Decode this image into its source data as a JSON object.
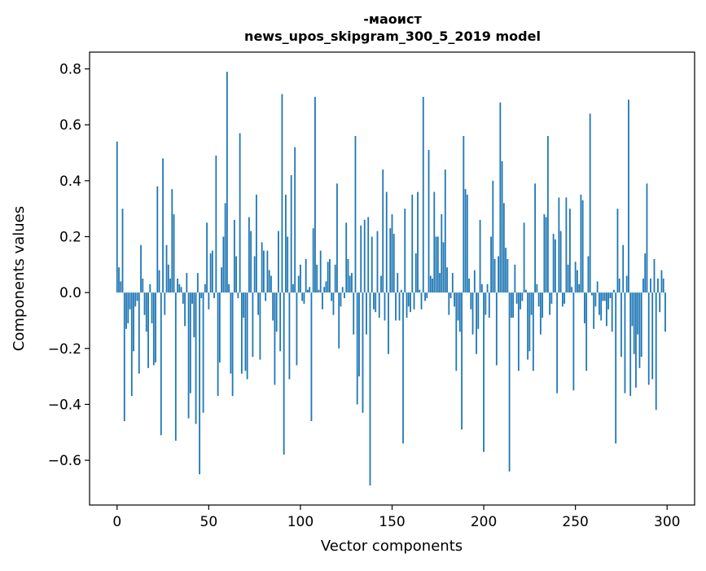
{
  "chart_data": {
    "type": "bar",
    "title_line1": "-маоист",
    "title_line2": "news_upos_skipgram_300_5_2019 model",
    "xlabel": "Vector components",
    "ylabel": "Components values",
    "xlim": [
      -15,
      315
    ],
    "ylim": [
      -0.76,
      0.86
    ],
    "xticks": [
      0,
      50,
      100,
      150,
      200,
      250,
      300
    ],
    "yticks": [
      -0.6,
      -0.4,
      -0.2,
      0.0,
      0.2,
      0.4,
      0.6,
      0.8
    ],
    "ytick_labels": [
      "−0.6",
      "−0.4",
      "−0.2",
      "0.0",
      "0.2",
      "0.4",
      "0.6",
      "0.8"
    ],
    "xtick_labels": [
      "0",
      "50",
      "100",
      "150",
      "200",
      "250",
      "300"
    ],
    "bar_color": "#1f77b4",
    "values": [
      0.54,
      0.09,
      0.04,
      0.3,
      -0.46,
      -0.13,
      -0.11,
      -0.06,
      -0.37,
      -0.21,
      -0.05,
      -0.03,
      -0.29,
      0.17,
      0.05,
      -0.08,
      -0.14,
      -0.27,
      0.03,
      -0.11,
      -0.26,
      -0.25,
      0.38,
      0.08,
      -0.51,
      0.48,
      -0.08,
      0.17,
      0.1,
      0.05,
      0.37,
      0.28,
      -0.53,
      0.05,
      0.03,
      0.02,
      -0.04,
      -0.12,
      0.07,
      -0.45,
      -0.36,
      -0.04,
      -0.16,
      -0.47,
      0.07,
      -0.65,
      -0.02,
      -0.43,
      0.03,
      0.25,
      -0.06,
      0.14,
      0.15,
      -0.02,
      0.49,
      -0.37,
      -0.25,
      0.09,
      0.2,
      0.32,
      0.79,
      0.03,
      -0.29,
      -0.37,
      0.26,
      0.13,
      -0.02,
      0.57,
      -0.29,
      -0.09,
      -0.28,
      -0.31,
      0.27,
      0.22,
      -0.23,
      0.13,
      0.35,
      -0.08,
      -0.24,
      0.18,
      0.15,
      -0.03,
      0.15,
      0.08,
      0.06,
      -0.1,
      -0.33,
      -0.14,
      0.22,
      -0.21,
      0.71,
      -0.58,
      0.35,
      0.2,
      -0.31,
      0.42,
      0.03,
      0.52,
      -0.26,
      0.06,
      0.1,
      -0.03,
      -0.04,
      0.12,
      0.01,
      0.02,
      -0.46,
      0.23,
      0.7,
      0.1,
      0.01,
      0.15,
      -0.06,
      0.02,
      0.04,
      0.11,
      0.12,
      -0.03,
      -0.08,
      0.1,
      0.39,
      -0.2,
      -0.05,
      0.02,
      -0.02,
      0.25,
      0.12,
      0.06,
      0.07,
      -0.15,
      0.56,
      -0.4,
      -0.3,
      0.24,
      -0.43,
      0.26,
      -0.15,
      0.27,
      -0.69,
      0.2,
      -0.06,
      -0.07,
      0.22,
      -0.09,
      0.06,
      0.44,
      -0.1,
      0.36,
      -0.22,
      0.23,
      0.28,
      0.21,
      -0.1,
      0.07,
      -0.1,
      0.01,
      -0.54,
      0.3,
      -0.09,
      -0.05,
      -0.07,
      0.35,
      -0.06,
      0.14,
      0.36,
      0.01,
      -0.06,
      0.7,
      -0.03,
      -0.02,
      0.51,
      0.06,
      0.05,
      0.36,
      0.2,
      0.2,
      0.07,
      0.28,
      0.18,
      0.44,
      0.09,
      -0.08,
      -0.02,
      0.07,
      -0.05,
      -0.28,
      -0.1,
      -0.14,
      -0.49,
      0.56,
      0.37,
      0.35,
      0.05,
      -0.06,
      -0.15,
      0.08,
      -0.22,
      -0.13,
      0.26,
      0.03,
      -0.57,
      -0.08,
      0.03,
      -0.09,
      0.2,
      0.4,
      0.12,
      -0.26,
      0.13,
      0.68,
      0.47,
      0.32,
      0.16,
      0.12,
      -0.64,
      -0.09,
      -0.09,
      0.1,
      -0.04,
      -0.28,
      -0.06,
      -0.03,
      0.25,
      0.01,
      -0.24,
      -0.21,
      -0.08,
      -0.28,
      0.39,
      0.03,
      -0.05,
      -0.15,
      -0.09,
      0.28,
      0.27,
      0.56,
      -0.08,
      -0.04,
      0.21,
      0.19,
      -0.36,
      0.34,
      0.22,
      -0.05,
      -0.04,
      0.34,
      0.1,
      0.3,
      0.02,
      -0.35,
      0.11,
      0.08,
      0.03,
      0.35,
      0.33,
      -0.11,
      -0.28,
      0.13,
      0.64,
      -0.01,
      -0.13,
      -0.05,
      0.04,
      -0.08,
      -0.1,
      -0.03,
      -0.03,
      -0.12,
      -0.06,
      -0.02,
      -0.14,
      0.01,
      -0.54,
      0.3,
      0.05,
      -0.23,
      0.17,
      -0.36,
      0.06,
      0.69,
      -0.37,
      -0.12,
      -0.22,
      -0.34,
      -0.15,
      -0.27,
      -0.23,
      0.05,
      0.14,
      0.39,
      -0.33,
      0.05,
      -0.31,
      0.12,
      -0.42,
      0.05,
      -0.07,
      0.08,
      0.05,
      -0.14
    ]
  }
}
